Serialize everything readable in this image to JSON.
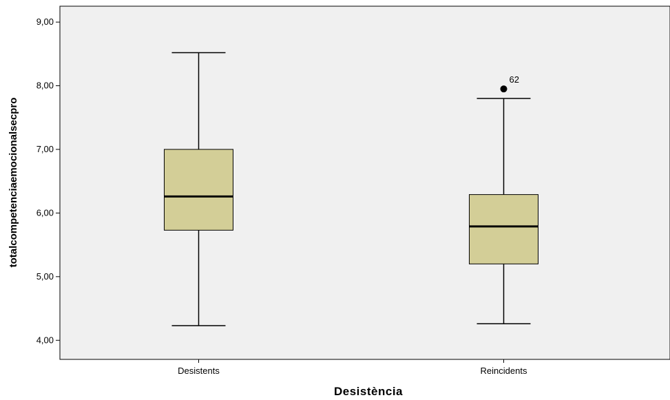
{
  "chart_data": {
    "type": "boxplot",
    "title": "",
    "xlabel": "Desistència",
    "ylabel": "totalcompetenciaemocionalsecpro",
    "ylim": [
      3.7,
      9.25
    ],
    "yticks": [
      "4,00",
      "5,00",
      "6,00",
      "7,00",
      "8,00",
      "9,00"
    ],
    "ytick_values": [
      4,
      5,
      6,
      7,
      8,
      9
    ],
    "grid": false,
    "categories": [
      "Desistents",
      "Reincidents"
    ],
    "boxes": [
      {
        "category": "Desistents",
        "whisker_low": 4.23,
        "q1": 5.73,
        "median": 6.26,
        "q3": 7.0,
        "whisker_high": 8.52,
        "outliers": []
      },
      {
        "category": "Reincidents",
        "whisker_low": 4.26,
        "q1": 5.2,
        "median": 5.79,
        "q3": 6.29,
        "whisker_high": 7.8,
        "outliers": [
          {
            "value": 7.95,
            "label": "62"
          }
        ]
      }
    ],
    "colors": {
      "plot_background": "#f0f0f0",
      "box_fill": "#d3ce97",
      "stroke": "#000000"
    }
  }
}
